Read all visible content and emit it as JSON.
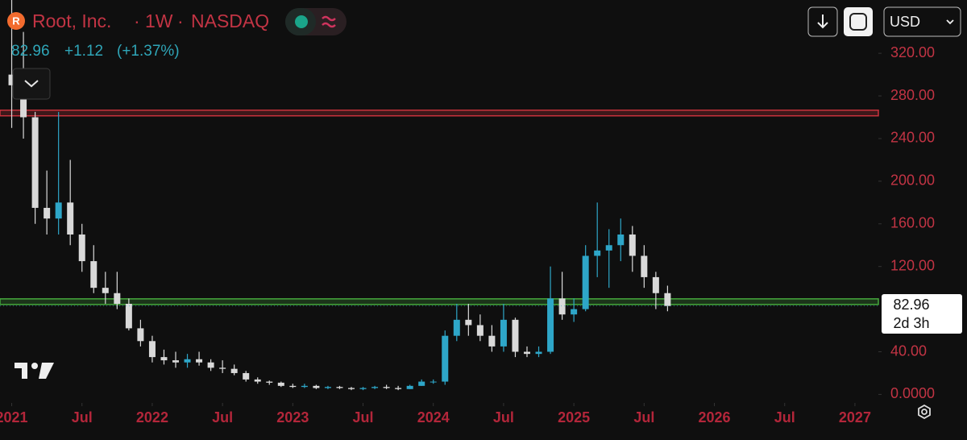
{
  "header": {
    "symbol_icon": "R",
    "name": "Root, Inc.",
    "interval": "1W",
    "exchange": "NASDAQ",
    "last": "82.96",
    "change": "+1.12",
    "change_pct": "(+1.37%)",
    "currency": "USD"
  },
  "chart_data": {
    "type": "candlestick",
    "x": [
      "2021-01",
      "2021-02",
      "2021-03",
      "2021-04",
      "2021-05",
      "2021-06",
      "2021-07",
      "2021-08",
      "2021-09",
      "2021-10",
      "2021-11",
      "2021-12",
      "2022-01",
      "2022-02",
      "2022-03",
      "2022-04",
      "2022-05",
      "2022-06",
      "2022-07",
      "2022-08",
      "2022-09",
      "2022-10",
      "2022-11",
      "2022-12",
      "2023-01",
      "2023-02",
      "2023-03",
      "2023-04",
      "2023-05",
      "2023-06",
      "2023-07",
      "2023-08",
      "2023-09",
      "2023-10",
      "2023-11",
      "2023-12",
      "2024-01",
      "2024-02",
      "2024-03",
      "2024-04",
      "2024-05",
      "2024-06",
      "2024-07",
      "2024-08",
      "2024-09",
      "2024-10",
      "2024-11",
      "2024-12",
      "2025-01",
      "2025-02",
      "2025-03",
      "2025-04",
      "2025-05",
      "2025-06",
      "2025-07",
      "2025-08",
      "2025-09"
    ],
    "open": [
      300,
      290,
      260,
      175,
      165,
      180,
      150,
      125,
      100,
      95,
      85,
      62,
      50,
      35,
      32,
      30,
      33,
      30,
      25,
      24,
      20,
      14,
      12,
      11,
      8,
      7,
      8,
      6,
      7,
      6,
      5,
      6,
      7,
      6,
      5,
      8,
      12,
      12,
      55,
      70,
      65,
      55,
      45,
      70,
      40,
      38,
      40,
      90,
      75,
      80,
      130,
      135,
      140,
      150,
      130,
      110,
      95
    ],
    "high": [
      370,
      340,
      265,
      210,
      265,
      220,
      160,
      140,
      115,
      115,
      90,
      70,
      55,
      42,
      40,
      38,
      40,
      33,
      32,
      28,
      22,
      16,
      13,
      12,
      10,
      10,
      9,
      8,
      8,
      7,
      7,
      8,
      9,
      8,
      9,
      14,
      14,
      60,
      85,
      85,
      75,
      65,
      85,
      72,
      45,
      45,
      120,
      115,
      90,
      140,
      180,
      155,
      165,
      158,
      140,
      115,
      102
    ],
    "low": [
      250,
      240,
      160,
      150,
      150,
      140,
      115,
      95,
      85,
      80,
      60,
      45,
      30,
      28,
      25,
      25,
      27,
      22,
      20,
      18,
      12,
      10,
      9,
      7,
      6,
      6,
      5,
      5,
      5,
      4,
      4,
      5,
      5,
      4,
      5,
      8,
      10,
      9,
      50,
      55,
      50,
      40,
      40,
      35,
      35,
      35,
      38,
      70,
      68,
      78,
      110,
      100,
      125,
      115,
      100,
      80,
      78
    ],
    "close": [
      290,
      260,
      175,
      165,
      180,
      150,
      125,
      100,
      95,
      85,
      62,
      50,
      35,
      32,
      30,
      33,
      30,
      25,
      24,
      20,
      14,
      12,
      11,
      8,
      7,
      8,
      6,
      7,
      6,
      5,
      6,
      7,
      6,
      5,
      8,
      12,
      12,
      55,
      70,
      65,
      55,
      45,
      70,
      40,
      38,
      40,
      90,
      75,
      80,
      130,
      135,
      140,
      150,
      130,
      110,
      95,
      82.96
    ],
    "up_color": "#2ea6c8",
    "down_color": "#d9d9d9",
    "xlim": [
      "2020-12",
      "2027-03"
    ],
    "xticks": [
      {
        "value": "2021-01",
        "label": "2021"
      },
      {
        "value": "2021-07",
        "label": "Jul"
      },
      {
        "value": "2022-01",
        "label": "2022"
      },
      {
        "value": "2022-07",
        "label": "Jul"
      },
      {
        "value": "2023-01",
        "label": "2023"
      },
      {
        "value": "2023-07",
        "label": "Jul"
      },
      {
        "value": "2024-01",
        "label": "2024"
      },
      {
        "value": "2024-07",
        "label": "Jul"
      },
      {
        "value": "2025-01",
        "label": "2025"
      },
      {
        "value": "2025-07",
        "label": "Jul"
      },
      {
        "value": "2026-01",
        "label": "2026"
      },
      {
        "value": "2026-07",
        "label": "Jul"
      },
      {
        "value": "2027-01",
        "label": "2027"
      }
    ],
    "ylim": [
      -8,
      370
    ],
    "yticks": [
      {
        "value": 0,
        "label": "0.0000"
      },
      {
        "value": 40,
        "label": "40.00"
      },
      {
        "value": 120,
        "label": "120.00"
      },
      {
        "value": 160,
        "label": "160.00"
      },
      {
        "value": 200,
        "label": "200.00"
      },
      {
        "value": 240,
        "label": "240.00"
      },
      {
        "value": 280,
        "label": "280.00"
      },
      {
        "value": 320,
        "label": "320.00"
      }
    ],
    "levels": [
      {
        "value": 264,
        "color": "#c8323c"
      },
      {
        "value": 87,
        "color": "#45a83c"
      }
    ],
    "last_price": 82.96,
    "countdown": "2d 3h"
  }
}
